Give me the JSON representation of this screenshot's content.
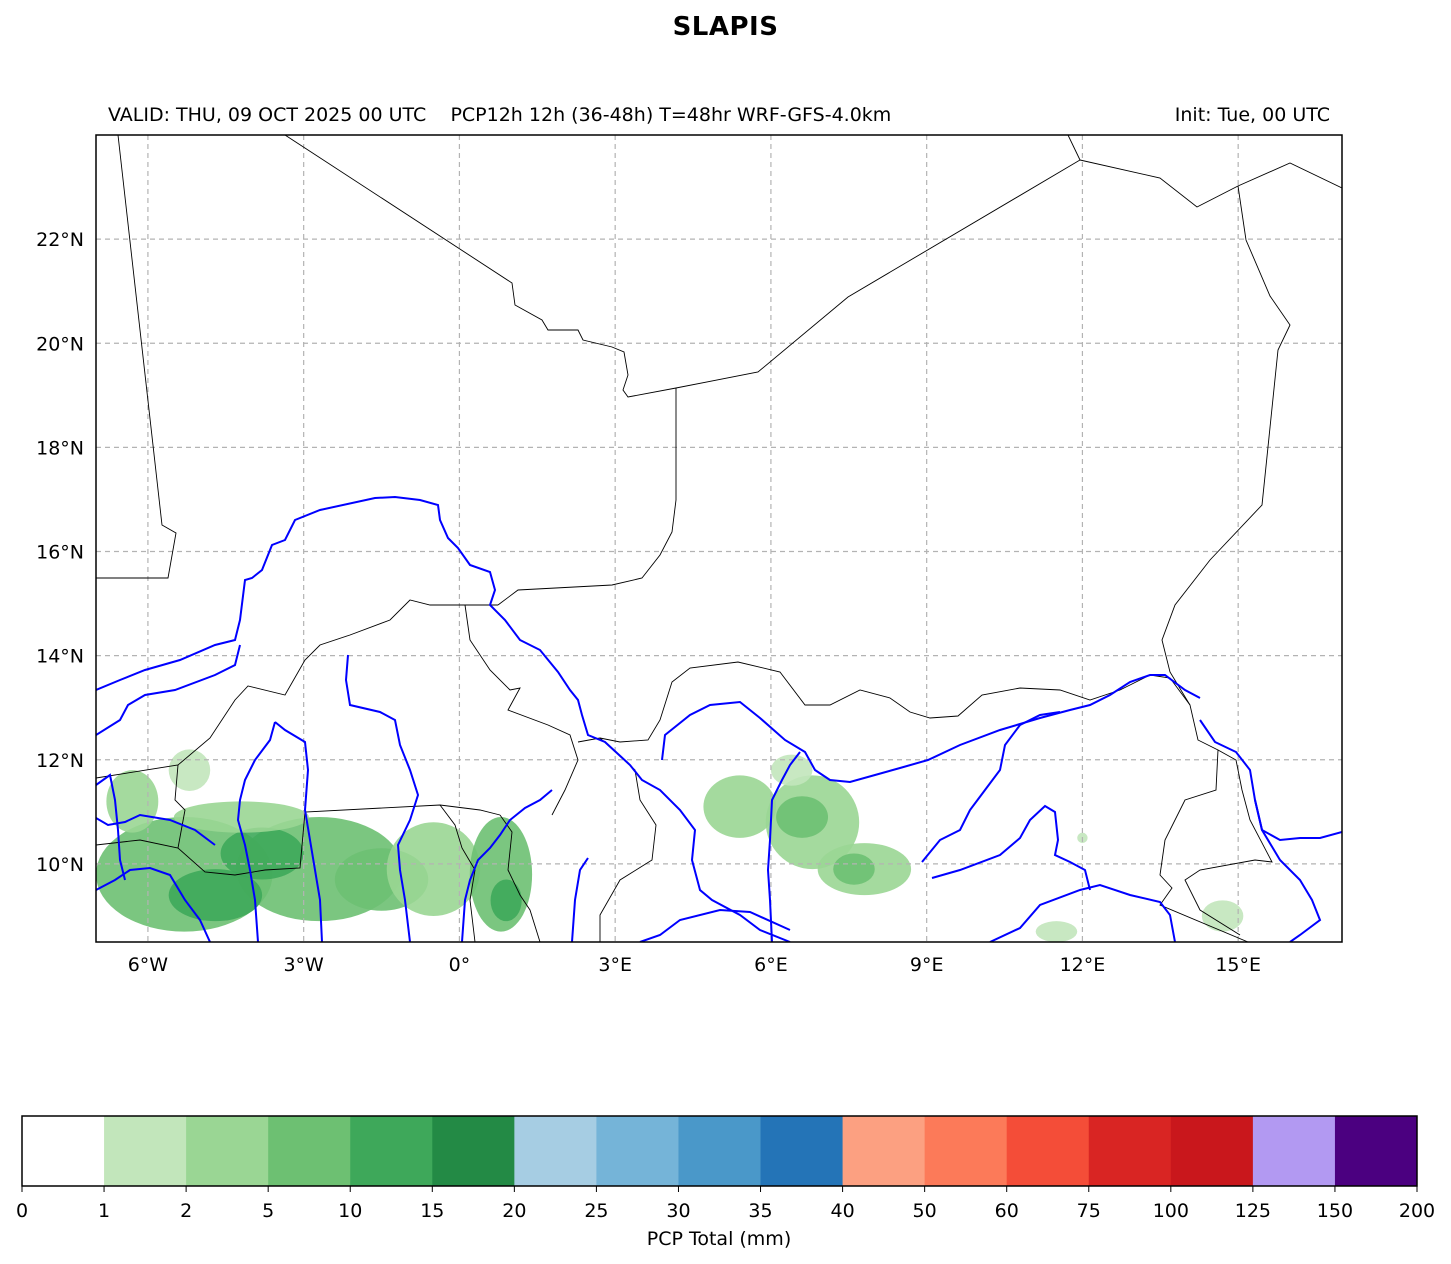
{
  "header": {
    "title": "SLAPIS",
    "valid": "VALID: THU, 09 OCT 2025 00 UTC",
    "product": "PCP12h 12h (36-48h) T=48hr WRF-GFS-4.0km",
    "init": "Init: Tue, 00 UTC"
  },
  "map": {
    "lon_range": [
      -7,
      17
    ],
    "lat_range": [
      8.5,
      24
    ],
    "lon_ticks": [
      -6,
      -3,
      0,
      3,
      6,
      9,
      12,
      15
    ],
    "lon_labels": [
      "6°W",
      "3°W",
      "0°",
      "3°E",
      "6°E",
      "9°E",
      "12°E",
      "15°E"
    ],
    "lat_ticks": [
      10,
      12,
      14,
      16,
      18,
      20,
      22
    ],
    "lat_labels": [
      "10°N",
      "12°N",
      "14°N",
      "16°N",
      "18°N",
      "20°N",
      "22°N"
    ],
    "gridlines": true,
    "border_color": "#000000",
    "river_color": "#0000ff",
    "precip_areas": [
      {
        "lon": -5.3,
        "lat": 9.8,
        "rlon": 1.7,
        "rlat": 1.1,
        "level": 3
      },
      {
        "lon": -2.7,
        "lat": 9.9,
        "rlon": 1.6,
        "rlat": 1.0,
        "level": 3
      },
      {
        "lon": -4.7,
        "lat": 9.4,
        "rlon": 0.9,
        "rlat": 0.5,
        "level": 4
      },
      {
        "lon": -3.8,
        "lat": 10.2,
        "rlon": 0.8,
        "rlat": 0.5,
        "level": 4
      },
      {
        "lon": -1.5,
        "lat": 9.7,
        "rlon": 0.9,
        "rlat": 0.6,
        "level": 3
      },
      {
        "lon": -0.5,
        "lat": 9.9,
        "rlon": 0.9,
        "rlat": 0.9,
        "level": 2
      },
      {
        "lon": 0.8,
        "lat": 9.8,
        "rlon": 0.6,
        "rlat": 1.1,
        "level": 3
      },
      {
        "lon": 0.9,
        "lat": 9.3,
        "rlon": 0.3,
        "rlat": 0.4,
        "level": 4
      },
      {
        "lon": -6.3,
        "lat": 11.2,
        "rlon": 0.5,
        "rlat": 0.6,
        "level": 2
      },
      {
        "lon": -5.2,
        "lat": 11.8,
        "rlon": 0.4,
        "rlat": 0.4,
        "level": 1
      },
      {
        "lon": -4.2,
        "lat": 10.9,
        "rlon": 1.3,
        "rlat": 0.3,
        "level": 2
      },
      {
        "lon": 5.4,
        "lat": 11.1,
        "rlon": 0.7,
        "rlat": 0.6,
        "level": 2
      },
      {
        "lon": 6.8,
        "lat": 10.8,
        "rlon": 0.9,
        "rlat": 0.9,
        "level": 2
      },
      {
        "lon": 6.6,
        "lat": 10.9,
        "rlon": 0.5,
        "rlat": 0.4,
        "level": 3
      },
      {
        "lon": 7.8,
        "lat": 9.9,
        "rlon": 0.9,
        "rlat": 0.5,
        "level": 2
      },
      {
        "lon": 7.6,
        "lat": 9.9,
        "rlon": 0.4,
        "rlat": 0.3,
        "level": 3
      },
      {
        "lon": 6.4,
        "lat": 11.8,
        "rlon": 0.4,
        "rlat": 0.3,
        "level": 1
      },
      {
        "lon": 14.7,
        "lat": 9.0,
        "rlon": 0.4,
        "rlat": 0.3,
        "level": 1
      },
      {
        "lon": 11.5,
        "lat": 8.7,
        "rlon": 0.4,
        "rlat": 0.2,
        "level": 1
      },
      {
        "lon": 12.0,
        "lat": 10.5,
        "rlon": 0.1,
        "rlat": 0.1,
        "level": 1
      }
    ]
  },
  "colorbar": {
    "label": "PCP Total (mm)",
    "boundaries": [
      0,
      1,
      2,
      5,
      10,
      15,
      20,
      25,
      30,
      35,
      40,
      50,
      60,
      75,
      100,
      125,
      150,
      200
    ],
    "tick_labels": [
      "0",
      "1",
      "2",
      "5",
      "10",
      "15",
      "20",
      "25",
      "30",
      "35",
      "40",
      "50",
      "60",
      "75",
      "100",
      "125",
      "150",
      "200"
    ],
    "colors": [
      "#ffffff",
      "#c2e6bb",
      "#9ad694",
      "#6dc072",
      "#3ea85a",
      "#238a45",
      "#a6cde3",
      "#75b4d8",
      "#4a98c9",
      "#2474b7",
      "#fca081",
      "#fc7a59",
      "#f44d38",
      "#d92523",
      "#c9171c",
      "#b299f2",
      "#4b0080"
    ]
  }
}
